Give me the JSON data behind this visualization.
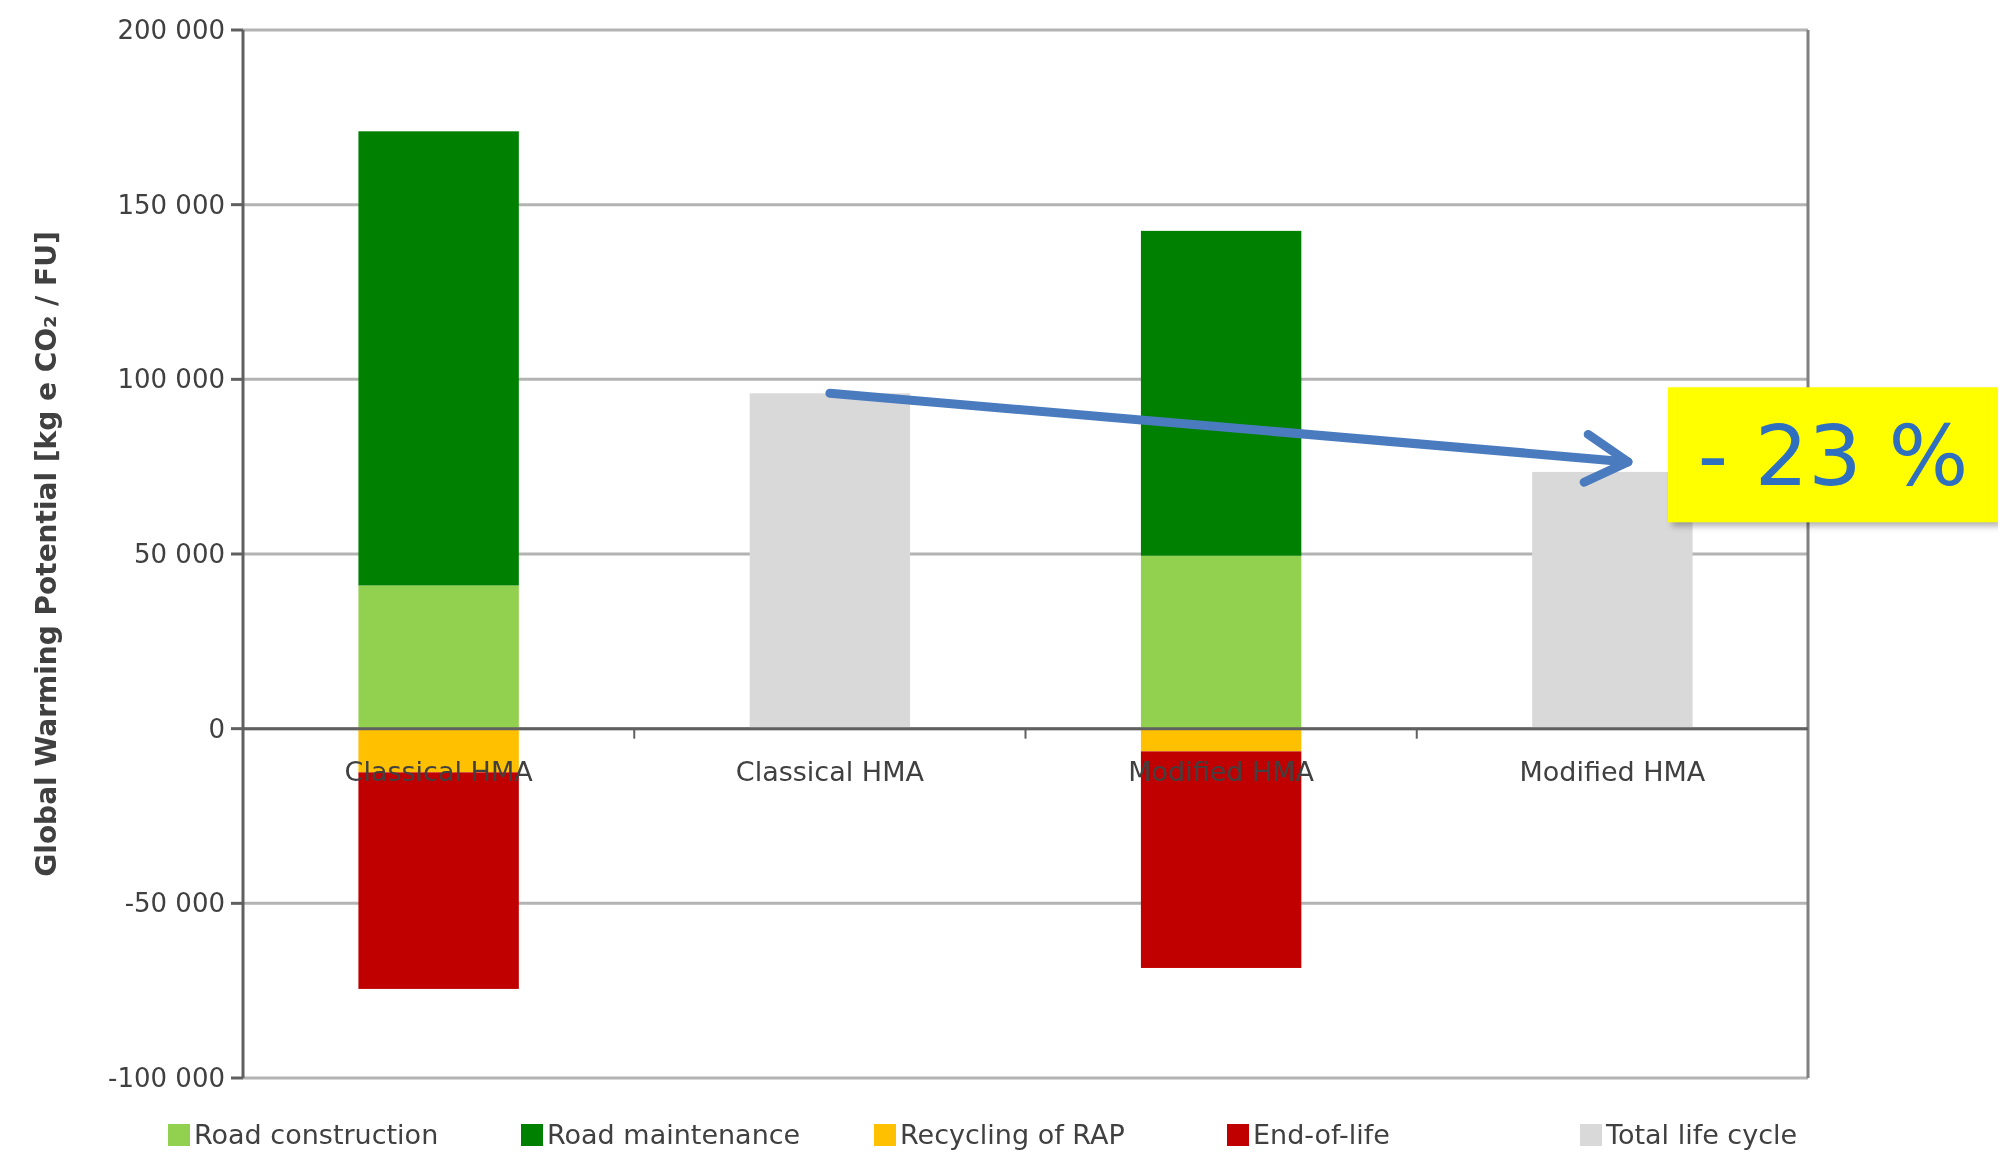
{
  "chart_data": {
    "type": "bar",
    "stacked": true,
    "ylabel": "Global Warming Potential [kg e CO₂ / FU]",
    "categories": [
      "Classical HMA",
      "Classical HMA",
      "Modified HMA",
      "Modified HMA"
    ],
    "series": [
      {
        "name": "Road construction",
        "color": "#92d050",
        "values": [
          41000,
          null,
          49500,
          null
        ]
      },
      {
        "name": "Road maintenance",
        "color": "#008000",
        "values": [
          130000,
          null,
          93000,
          null
        ]
      },
      {
        "name": "Recycling of RAP",
        "color": "#ffc000",
        "values": [
          -12500,
          null,
          -6500,
          null
        ]
      },
      {
        "name": "End-of-life",
        "color": "#c00000",
        "values": [
          -62000,
          null,
          -62000,
          null
        ]
      },
      {
        "name": "Total life cycle",
        "color": "#d9d9d9",
        "values": [
          null,
          96000,
          null,
          73500
        ]
      }
    ],
    "ylim": [
      -100000,
      200000
    ],
    "yticks": [
      {
        "value": -100000,
        "label": "-100 000"
      },
      {
        "value": -50000,
        "label": "-50 000"
      },
      0,
      {
        "value": 50000,
        "label": "50 000"
      },
      {
        "value": 100000,
        "label": "100 000"
      },
      {
        "value": 150000,
        "label": "150 000"
      },
      {
        "value": 200000,
        "label": "200 000"
      }
    ],
    "grid": "y",
    "legend": "bottom",
    "annotations": [
      "- 23 %"
    ]
  }
}
